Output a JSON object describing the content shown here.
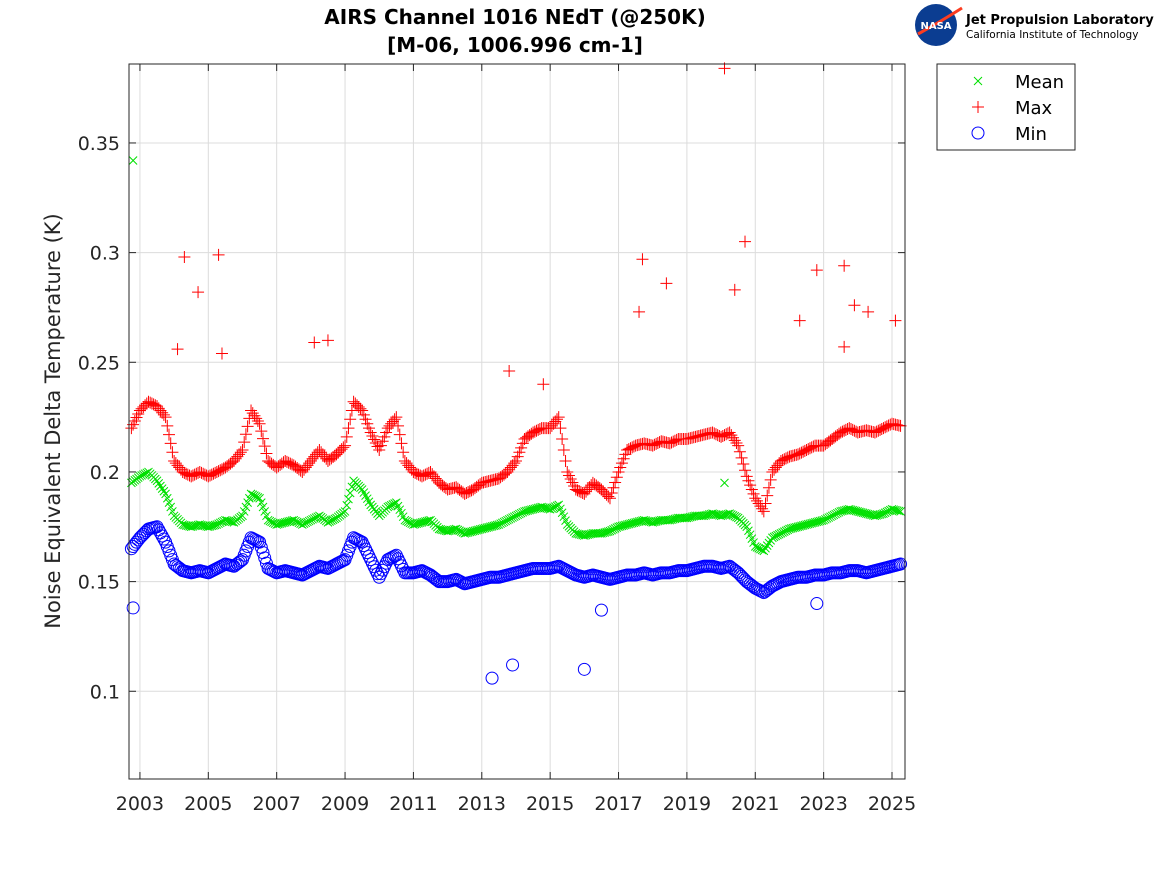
{
  "chart_data": {
    "type": "scatter",
    "title": [
      "AIRS Channel 1016 NEdT (@250K)",
      "[M-06, 1006.996 cm-1]"
    ],
    "xlabel": "",
    "ylabel": "Noise Equivalent Delta Temperature (K)",
    "xlim": [
      2002.68,
      2025.38
    ],
    "ylim": [
      0.06,
      0.386
    ],
    "xticks": [
      2003,
      2005,
      2007,
      2009,
      2011,
      2013,
      2015,
      2017,
      2019,
      2021,
      2023,
      2025
    ],
    "xtick_labels": [
      "2003",
      "2005",
      "2007",
      "2009",
      "2011",
      "2013",
      "2015",
      "2017",
      "2019",
      "2021",
      "2023",
      "2025"
    ],
    "yticks": [
      0.1,
      0.15,
      0.2,
      0.25,
      0.3,
      0.35
    ],
    "ytick_labels": [
      "0.1",
      "0.15",
      "0.2",
      "0.25",
      "0.3",
      "0.35"
    ],
    "grid": true,
    "legend_placement": "outside-top-right",
    "x": [
      2002.75,
      2003,
      2003.25,
      2003.5,
      2003.75,
      2004,
      2004.25,
      2004.5,
      2004.75,
      2005,
      2005.25,
      2005.5,
      2005.75,
      2006,
      2006.25,
      2006.5,
      2006.75,
      2007,
      2007.25,
      2007.5,
      2007.75,
      2008,
      2008.25,
      2008.5,
      2008.75,
      2009,
      2009.25,
      2009.5,
      2009.75,
      2010,
      2010.25,
      2010.5,
      2010.75,
      2011,
      2011.25,
      2011.5,
      2011.75,
      2012,
      2012.25,
      2012.5,
      2012.75,
      2013,
      2013.25,
      2013.5,
      2013.75,
      2014,
      2014.25,
      2014.5,
      2014.75,
      2015,
      2015.25,
      2015.5,
      2015.75,
      2016,
      2016.25,
      2016.5,
      2016.75,
      2017,
      2017.25,
      2017.5,
      2017.75,
      2018,
      2018.25,
      2018.5,
      2018.75,
      2019,
      2019.25,
      2019.5,
      2019.75,
      2020,
      2020.25,
      2020.5,
      2020.75,
      2021,
      2021.25,
      2021.5,
      2021.75,
      2022,
      2022.25,
      2022.5,
      2022.75,
      2023,
      2023.25,
      2023.5,
      2023.75,
      2024,
      2024.25,
      2024.5,
      2024.75,
      2025,
      2025.25
    ],
    "series": [
      {
        "name": "Mean",
        "marker": "x",
        "color": "#00e000",
        "values": [
          0.195,
          0.198,
          0.2,
          0.196,
          0.19,
          0.18,
          0.176,
          0.175,
          0.176,
          0.175,
          0.176,
          0.178,
          0.177,
          0.18,
          0.19,
          0.188,
          0.178,
          0.176,
          0.177,
          0.178,
          0.176,
          0.178,
          0.18,
          0.177,
          0.179,
          0.182,
          0.196,
          0.192,
          0.185,
          0.18,
          0.184,
          0.186,
          0.178,
          0.176,
          0.177,
          0.178,
          0.174,
          0.173,
          0.174,
          0.172,
          0.173,
          0.174,
          0.175,
          0.176,
          0.178,
          0.18,
          0.182,
          0.183,
          0.184,
          0.183,
          0.185,
          0.176,
          0.172,
          0.171,
          0.172,
          0.172,
          0.173,
          0.175,
          0.176,
          0.177,
          0.178,
          0.177,
          0.178,
          0.178,
          0.179,
          0.179,
          0.18,
          0.18,
          0.181,
          0.18,
          0.181,
          0.179,
          0.175,
          0.166,
          0.164,
          0.17,
          0.172,
          0.174,
          0.175,
          0.176,
          0.177,
          0.178,
          0.18,
          0.182,
          0.183,
          0.182,
          0.181,
          0.18,
          0.181,
          0.183,
          0.182
        ],
        "outliers": [
          [
            2002.8,
            0.342
          ],
          [
            2020.1,
            0.195
          ]
        ]
      },
      {
        "name": "Max",
        "marker": "+",
        "color": "#ff0000",
        "values": [
          0.22,
          0.228,
          0.232,
          0.23,
          0.225,
          0.205,
          0.2,
          0.198,
          0.2,
          0.198,
          0.2,
          0.202,
          0.205,
          0.21,
          0.228,
          0.222,
          0.205,
          0.202,
          0.205,
          0.203,
          0.2,
          0.205,
          0.21,
          0.205,
          0.208,
          0.212,
          0.232,
          0.228,
          0.218,
          0.21,
          0.22,
          0.225,
          0.205,
          0.2,
          0.198,
          0.2,
          0.195,
          0.192,
          0.193,
          0.19,
          0.192,
          0.195,
          0.196,
          0.197,
          0.2,
          0.205,
          0.215,
          0.218,
          0.22,
          0.22,
          0.225,
          0.2,
          0.192,
          0.19,
          0.195,
          0.192,
          0.188,
          0.2,
          0.21,
          0.212,
          0.213,
          0.212,
          0.214,
          0.213,
          0.215,
          0.215,
          0.216,
          0.217,
          0.218,
          0.216,
          0.218,
          0.212,
          0.198,
          0.188,
          0.182,
          0.2,
          0.205,
          0.207,
          0.208,
          0.21,
          0.212,
          0.212,
          0.215,
          0.218,
          0.22,
          0.218,
          0.219,
          0.218,
          0.22,
          0.222,
          0.221
        ],
        "outliers": [
          [
            2020.1,
            0.384
          ],
          [
            2004.3,
            0.298
          ],
          [
            2005.3,
            0.299
          ],
          [
            2004.7,
            0.282
          ],
          [
            2017.7,
            0.297
          ],
          [
            2017.6,
            0.273
          ],
          [
            2018.4,
            0.286
          ],
          [
            2020.7,
            0.305
          ],
          [
            2020.4,
            0.283
          ],
          [
            2022.8,
            0.292
          ],
          [
            2023.6,
            0.294
          ],
          [
            2023.6,
            0.257
          ],
          [
            2022.3,
            0.269
          ],
          [
            2023.9,
            0.276
          ],
          [
            2024.3,
            0.273
          ],
          [
            2025.1,
            0.269
          ],
          [
            2005.4,
            0.254
          ],
          [
            2004.1,
            0.256
          ],
          [
            2008.5,
            0.26
          ],
          [
            2008.1,
            0.259
          ],
          [
            2013.8,
            0.246
          ],
          [
            2014.8,
            0.24
          ]
        ]
      },
      {
        "name": "Min",
        "marker": "o",
        "color": "#0000ff",
        "values": [
          0.165,
          0.17,
          0.174,
          0.175,
          0.168,
          0.158,
          0.155,
          0.154,
          0.155,
          0.154,
          0.156,
          0.158,
          0.157,
          0.16,
          0.17,
          0.168,
          0.156,
          0.154,
          0.155,
          0.154,
          0.153,
          0.155,
          0.157,
          0.156,
          0.158,
          0.16,
          0.17,
          0.168,
          0.16,
          0.152,
          0.16,
          0.162,
          0.154,
          0.154,
          0.155,
          0.153,
          0.15,
          0.15,
          0.151,
          0.149,
          0.15,
          0.151,
          0.152,
          0.152,
          0.153,
          0.154,
          0.155,
          0.156,
          0.156,
          0.156,
          0.157,
          0.155,
          0.153,
          0.152,
          0.153,
          0.152,
          0.151,
          0.152,
          0.153,
          0.153,
          0.154,
          0.153,
          0.154,
          0.154,
          0.155,
          0.155,
          0.156,
          0.157,
          0.157,
          0.156,
          0.157,
          0.154,
          0.15,
          0.147,
          0.145,
          0.148,
          0.15,
          0.151,
          0.152,
          0.152,
          0.153,
          0.153,
          0.154,
          0.154,
          0.155,
          0.155,
          0.154,
          0.155,
          0.156,
          0.157,
          0.158
        ],
        "outliers": [
          [
            2013.3,
            0.106
          ],
          [
            2013.9,
            0.112
          ],
          [
            2016.0,
            0.11
          ],
          [
            2016.5,
            0.137
          ],
          [
            2002.8,
            0.138
          ],
          [
            2022.8,
            0.14
          ]
        ]
      }
    ]
  },
  "logo": {
    "org_name": "Jet Propulsion Laboratory",
    "org_sub": "California Institute of Technology",
    "badge": "NASA"
  }
}
